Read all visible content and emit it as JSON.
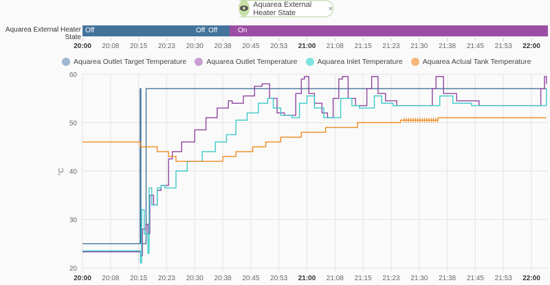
{
  "chip": {
    "label": "Aquarea External Heater State",
    "icon": "eye-icon"
  },
  "timeline": {
    "label": "Aquarea External Heater State",
    "segments": [
      {
        "state": "Off",
        "start": 0,
        "end": 39,
        "color": "#43739a"
      },
      {
        "state": "On",
        "start": 39,
        "end": 124,
        "color": "#9b4ea3"
      }
    ],
    "texts": [
      "Off",
      "Off",
      "Off",
      "On"
    ]
  },
  "time_ticks": [
    "20:00",
    "20:08",
    "20:15",
    "20:23",
    "20:30",
    "20:38",
    "20:45",
    "20:53",
    "21:00",
    "21:08",
    "21:15",
    "21:23",
    "21:30",
    "21:38",
    "21:45",
    "21:53",
    "22:00"
  ],
  "chart_data": {
    "type": "line",
    "ylabel": "°C",
    "ylim": [
      20,
      60
    ],
    "yticks": [
      "20",
      "30",
      "40",
      "50",
      "60"
    ],
    "x_unit": "minutes since 20:00",
    "xlim": [
      0,
      124
    ],
    "legend": "top",
    "series": [
      {
        "name": "Aquarea Outlet Target Temperature",
        "color": "#43739a",
        "legend_color": "#a1b6cf",
        "points": [
          [
            0,
            25
          ],
          [
            15.4,
            25
          ],
          [
            15.4,
            57
          ],
          [
            15.6,
            57
          ],
          [
            15.6,
            25
          ],
          [
            17,
            25
          ],
          [
            17,
            57
          ],
          [
            124,
            57
          ]
        ]
      },
      {
        "name": "Aquarea Outlet Temperature",
        "color": "#8e44a0",
        "legend_color": "#c99fd4",
        "points": [
          [
            0,
            23.3
          ],
          [
            15.3,
            23.3
          ],
          [
            15.5,
            22.5
          ],
          [
            16,
            28
          ],
          [
            17,
            29
          ],
          [
            17.5,
            27
          ],
          [
            18,
            35
          ],
          [
            19,
            33
          ],
          [
            20,
            36
          ],
          [
            21,
            37
          ],
          [
            23,
            42.5
          ],
          [
            24,
            44
          ],
          [
            26.5,
            46
          ],
          [
            30,
            48.5
          ],
          [
            33,
            51
          ],
          [
            36,
            53
          ],
          [
            39,
            54.5
          ],
          [
            40,
            54
          ],
          [
            43,
            55.5
          ],
          [
            46,
            57.5
          ],
          [
            48,
            58
          ],
          [
            49.3,
            58
          ],
          [
            50,
            55
          ],
          [
            52,
            52
          ],
          [
            54,
            51.5
          ],
          [
            55.5,
            51.5
          ],
          [
            57,
            56
          ],
          [
            58.5,
            59
          ],
          [
            59.3,
            59.5
          ],
          [
            60.5,
            56
          ],
          [
            62,
            54
          ],
          [
            64,
            52
          ],
          [
            65.5,
            51
          ],
          [
            67,
            55
          ],
          [
            68.5,
            59
          ],
          [
            69.5,
            59.5
          ],
          [
            71,
            55
          ],
          [
            73,
            53.5
          ],
          [
            75,
            53.5
          ],
          [
            76,
            57
          ],
          [
            77.3,
            59.5
          ],
          [
            79,
            56
          ],
          [
            81,
            54.5
          ],
          [
            84,
            53.5
          ],
          [
            92,
            53.5
          ],
          [
            93.5,
            57
          ],
          [
            94.5,
            59.5
          ],
          [
            96.5,
            56
          ],
          [
            100,
            54.5
          ],
          [
            106,
            53.5
          ],
          [
            121,
            53.5
          ],
          [
            122.5,
            57
          ],
          [
            123.5,
            59.5
          ],
          [
            124,
            58
          ]
        ]
      },
      {
        "name": "Aquarea Inlet Temperature",
        "color": "#3cc9c9",
        "legend_color": "#7fe3e0",
        "points": [
          [
            0,
            23.5
          ],
          [
            15.3,
            23.5
          ],
          [
            15.5,
            21
          ],
          [
            15.8,
            32
          ],
          [
            16.5,
            27
          ],
          [
            17.5,
            23
          ],
          [
            17.8,
            36.5
          ],
          [
            18.5,
            33
          ],
          [
            20,
            36.5
          ],
          [
            21,
            37
          ],
          [
            22,
            36.5
          ],
          [
            25,
            40
          ],
          [
            28,
            42
          ],
          [
            32,
            44
          ],
          [
            35.5,
            46
          ],
          [
            38.5,
            47.5
          ],
          [
            41,
            50.5
          ],
          [
            44,
            52
          ],
          [
            47,
            54
          ],
          [
            49.5,
            55
          ],
          [
            51,
            53
          ],
          [
            53,
            51.5
          ],
          [
            56,
            51
          ],
          [
            58,
            54
          ],
          [
            60,
            55.5
          ],
          [
            62,
            53
          ],
          [
            64.5,
            51
          ],
          [
            69,
            55
          ],
          [
            72,
            53.5
          ],
          [
            74,
            53
          ],
          [
            78,
            55.5
          ],
          [
            80,
            54
          ],
          [
            83,
            53.5
          ],
          [
            92.5,
            53.5
          ],
          [
            95.5,
            55.5
          ],
          [
            99,
            54
          ],
          [
            104,
            53.5
          ],
          [
            122,
            53.5
          ],
          [
            124,
            57
          ]
        ]
      },
      {
        "name": "Aquarea Actual Tank Temperature",
        "color": "#ef8a1e",
        "legend_color": "#f7b77a",
        "points": [
          [
            0,
            46
          ],
          [
            15.3,
            46
          ],
          [
            15.5,
            45
          ],
          [
            20,
            45
          ],
          [
            20,
            44
          ],
          [
            23,
            44
          ],
          [
            23,
            43
          ],
          [
            25,
            43
          ],
          [
            25,
            42
          ],
          [
            36,
            42
          ],
          [
            37.5,
            42
          ],
          [
            37.5,
            43
          ],
          [
            41,
            43
          ],
          [
            41,
            44
          ],
          [
            45.5,
            44
          ],
          [
            45.5,
            45
          ],
          [
            49,
            45
          ],
          [
            49,
            46
          ],
          [
            53,
            46
          ],
          [
            53,
            47
          ],
          [
            58.5,
            47
          ],
          [
            58.5,
            48
          ],
          [
            65,
            48
          ],
          [
            65,
            49
          ],
          [
            73.5,
            49
          ],
          [
            73.5,
            50
          ],
          [
            85,
            50
          ],
          [
            85,
            50.5
          ],
          [
            95,
            50.5
          ],
          [
            95,
            51
          ],
          [
            124,
            51
          ]
        ]
      }
    ]
  }
}
